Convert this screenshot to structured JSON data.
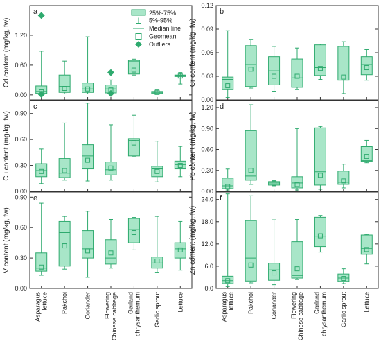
{
  "colors": {
    "accent": "#2eaa6e",
    "fill": "#a8e6c8",
    "frame": "#333333"
  },
  "categories": [
    [
      "Asparagus",
      "lettuce"
    ],
    [
      "Pakchoi"
    ],
    [
      "Coriander"
    ],
    [
      "Flowering",
      "Chinese cabbage"
    ],
    [
      "Garland",
      "chrysanthemum"
    ],
    [
      "Garlic sprout"
    ],
    [
      "Lettuce"
    ]
  ],
  "legend": {
    "items": [
      "25%-75%",
      "5%-95%",
      "Median line",
      "Geomean",
      "Outliers"
    ]
  },
  "chart_data": [
    {
      "type": "box",
      "panel": "a",
      "ylabel": "Cd content (mg/kg, fw)",
      "ylim": [
        -0.1,
        1.8
      ],
      "yticks": [
        0.0,
        0.6,
        1.2
      ],
      "tick_labels": [
        "0.00",
        "0.60",
        "1.20"
      ],
      "boxes": [
        {
          "p5": 0.0,
          "q1": 0.03,
          "median": 0.07,
          "q3": 0.18,
          "p95": 0.88,
          "geomean": 0.06,
          "outliers": [
            1.6,
            0.01
          ]
        },
        {
          "p5": 0.02,
          "q1": 0.05,
          "median": 0.17,
          "q3": 0.4,
          "p95": 0.68,
          "geomean": 0.13,
          "outliers": []
        },
        {
          "p5": 0.02,
          "q1": 0.05,
          "median": 0.12,
          "q3": 0.24,
          "p95": 1.17,
          "geomean": 0.12,
          "outliers": []
        },
        {
          "p5": 0.01,
          "q1": 0.04,
          "median": 0.12,
          "q3": 0.2,
          "p95": 0.3,
          "geomean": 0.1,
          "outliers": [
            0.45,
            0.03
          ]
        },
        {
          "p5": 0.4,
          "q1": 0.42,
          "median": 0.68,
          "q3": 0.7,
          "p95": 0.72,
          "geomean": 0.5,
          "outliers": []
        },
        {
          "p5": 0.01,
          "q1": 0.03,
          "median": 0.05,
          "q3": 0.07,
          "p95": 0.1,
          "geomean": 0.05,
          "outliers": []
        },
        {
          "p5": 0.22,
          "q1": 0.37,
          "median": 0.39,
          "q3": 0.4,
          "p95": 0.45,
          "geomean": 0.38,
          "outliers": []
        }
      ]
    },
    {
      "type": "box",
      "panel": "b",
      "ylabel": "Cr content (mg/kg, fw)",
      "ylim": [
        0.0,
        0.12
      ],
      "yticks": [
        0.0,
        0.03,
        0.06,
        0.09,
        0.12
      ],
      "tick_labels": [
        "0.00",
        "0.03",
        "0.06",
        "0.09",
        "0.12"
      ],
      "boxes": [
        {
          "p5": 0.003,
          "q1": 0.013,
          "median": 0.026,
          "q3": 0.029,
          "p95": 0.088,
          "geomean": 0.018,
          "outliers": []
        },
        {
          "p5": 0.015,
          "q1": 0.017,
          "median": 0.045,
          "q3": 0.069,
          "p95": 0.077,
          "geomean": 0.039,
          "outliers": []
        },
        {
          "p5": 0.011,
          "q1": 0.019,
          "median": 0.037,
          "q3": 0.055,
          "p95": 0.068,
          "geomean": 0.03,
          "outliers": []
        },
        {
          "p5": 0.013,
          "q1": 0.016,
          "median": 0.028,
          "q3": 0.052,
          "p95": 0.066,
          "geomean": 0.03,
          "outliers": []
        },
        {
          "p5": 0.026,
          "q1": 0.031,
          "median": 0.041,
          "q3": 0.07,
          "p95": 0.071,
          "geomean": 0.04,
          "outliers": []
        },
        {
          "p5": 0.008,
          "q1": 0.025,
          "median": 0.034,
          "q3": 0.068,
          "p95": 0.074,
          "geomean": 0.029,
          "outliers": []
        },
        {
          "p5": 0.025,
          "q1": 0.032,
          "median": 0.045,
          "q3": 0.055,
          "p95": 0.064,
          "geomean": 0.041,
          "outliers": []
        }
      ]
    },
    {
      "type": "box",
      "panel": "c",
      "ylabel": "Cu content (mg/kg, fw)",
      "ylim": [
        0.0,
        1.05
      ],
      "yticks": [
        0.0,
        0.3,
        0.6,
        0.9
      ],
      "tick_labels": [
        "0.00",
        "0.30",
        "0.60",
        "0.90"
      ],
      "boxes": [
        {
          "p5": 0.09,
          "q1": 0.17,
          "median": 0.24,
          "q3": 0.32,
          "p95": 0.49,
          "geomean": 0.23,
          "outliers": []
        },
        {
          "p5": 0.13,
          "q1": 0.16,
          "median": 0.21,
          "q3": 0.38,
          "p95": 0.79,
          "geomean": 0.24,
          "outliers": []
        },
        {
          "p5": 0.12,
          "q1": 0.26,
          "median": 0.41,
          "q3": 0.54,
          "p95": 1.02,
          "geomean": 0.36,
          "outliers": []
        },
        {
          "p5": 0.13,
          "q1": 0.19,
          "median": 0.25,
          "q3": 0.34,
          "p95": 0.77,
          "geomean": 0.27,
          "outliers": []
        },
        {
          "p5": 0.4,
          "q1": 0.41,
          "median": 0.59,
          "q3": 0.61,
          "p95": 0.88,
          "geomean": 0.56,
          "outliers": []
        },
        {
          "p5": 0.11,
          "q1": 0.17,
          "median": 0.26,
          "q3": 0.29,
          "p95": 0.58,
          "geomean": 0.23,
          "outliers": []
        },
        {
          "p5": 0.17,
          "q1": 0.26,
          "median": 0.31,
          "q3": 0.35,
          "p95": 0.52,
          "geomean": 0.3,
          "outliers": []
        }
      ]
    },
    {
      "type": "box",
      "panel": "d",
      "ylabel": "Pb content (mg/kg, fw)",
      "ylim": [
        0.0,
        1.3
      ],
      "yticks": [
        0.0,
        0.3,
        0.6,
        0.9,
        1.2
      ],
      "tick_labels": [
        "0.00",
        "0.30",
        "0.60",
        "0.90",
        "1.20"
      ],
      "boxes": [
        {
          "p5": 0.02,
          "q1": 0.04,
          "median": 0.08,
          "q3": 0.19,
          "p95": 0.32,
          "geomean": 0.07,
          "outliers": []
        },
        {
          "p5": 0.1,
          "q1": 0.16,
          "median": 0.22,
          "q3": 0.87,
          "p95": 1.24,
          "geomean": 0.3,
          "outliers": []
        },
        {
          "p5": 0.08,
          "q1": 0.09,
          "median": 0.12,
          "q3": 0.14,
          "p95": 0.16,
          "geomean": 0.12,
          "outliers": []
        },
        {
          "p5": 0.02,
          "q1": 0.05,
          "median": 0.12,
          "q3": 0.21,
          "p95": 0.9,
          "geomean": 0.1,
          "outliers": []
        },
        {
          "p5": 0.03,
          "q1": 0.09,
          "median": 0.28,
          "q3": 0.91,
          "p95": 0.93,
          "geomean": 0.23,
          "outliers": []
        },
        {
          "p5": 0.05,
          "q1": 0.1,
          "median": 0.13,
          "q3": 0.29,
          "p95": 0.39,
          "geomean": 0.15,
          "outliers": []
        },
        {
          "p5": 0.41,
          "q1": 0.43,
          "median": 0.44,
          "q3": 0.64,
          "p95": 0.73,
          "geomean": 0.5,
          "outliers": []
        }
      ]
    },
    {
      "type": "box",
      "panel": "e",
      "ylabel": "V content (mg/kg, fw)",
      "ylim": [
        0.0,
        0.95
      ],
      "yticks": [
        0.0,
        0.3,
        0.6,
        0.9
      ],
      "tick_labels": [
        "0.00",
        "0.30",
        "0.60",
        "0.90"
      ],
      "boxes": [
        {
          "p5": 0.13,
          "q1": 0.17,
          "median": 0.2,
          "q3": 0.35,
          "p95": 0.84,
          "geomean": 0.21,
          "outliers": []
        },
        {
          "p5": 0.19,
          "q1": 0.22,
          "median": 0.55,
          "q3": 0.66,
          "p95": 0.71,
          "geomean": 0.42,
          "outliers": []
        },
        {
          "p5": 0.11,
          "q1": 0.3,
          "median": 0.39,
          "q3": 0.57,
          "p95": 0.76,
          "geomean": 0.37,
          "outliers": []
        },
        {
          "p5": 0.2,
          "q1": 0.24,
          "median": 0.3,
          "q3": 0.48,
          "p95": 0.68,
          "geomean": 0.35,
          "outliers": []
        },
        {
          "p5": 0.38,
          "q1": 0.45,
          "median": 0.58,
          "q3": 0.69,
          "p95": 0.7,
          "geomean": 0.55,
          "outliers": []
        },
        {
          "p5": 0.16,
          "q1": 0.2,
          "median": 0.25,
          "q3": 0.31,
          "p95": 0.71,
          "geomean": 0.27,
          "outliers": []
        },
        {
          "p5": 0.18,
          "q1": 0.3,
          "median": 0.39,
          "q3": 0.45,
          "p95": 0.66,
          "geomean": 0.38,
          "outliers": []
        }
      ]
    },
    {
      "type": "box",
      "panel": "f",
      "ylabel": "Zn content (mg/kg, fw)",
      "ylim": [
        0.0,
        26.0
      ],
      "yticks": [
        0.0,
        6.0,
        12.0,
        18.0,
        24.0
      ],
      "tick_labels": [
        "0.0",
        "6.0",
        "12.0",
        "18.0",
        "24.0"
      ],
      "boxes": [
        {
          "p5": 0.5,
          "q1": 1.3,
          "median": 2.1,
          "q3": 3.3,
          "p95": 25.5,
          "geomean": 2.1,
          "outliers": []
        },
        {
          "p5": 1.5,
          "q1": 2.0,
          "median": 8.2,
          "q3": 18.3,
          "p95": 25.0,
          "geomean": 6.3,
          "outliers": []
        },
        {
          "p5": 1.0,
          "q1": 2.2,
          "median": 5.0,
          "q3": 6.8,
          "p95": 18.5,
          "geomean": 4.2,
          "outliers": []
        },
        {
          "p5": 2.4,
          "q1": 2.8,
          "median": 3.5,
          "q3": 12.6,
          "p95": 18.6,
          "geomean": 5.3,
          "outliers": []
        },
        {
          "p5": 9.8,
          "q1": 11.3,
          "median": 14.1,
          "q3": 19.2,
          "p95": 19.7,
          "geomean": 14.2,
          "outliers": []
        },
        {
          "p5": 1.3,
          "q1": 1.9,
          "median": 2.8,
          "q3": 3.9,
          "p95": 5.3,
          "geomean": 2.7,
          "outliers": []
        },
        {
          "p5": 6.6,
          "q1": 9.2,
          "median": 10.8,
          "q3": 14.4,
          "p95": 14.6,
          "geomean": 10.5,
          "outliers": []
        }
      ]
    }
  ]
}
